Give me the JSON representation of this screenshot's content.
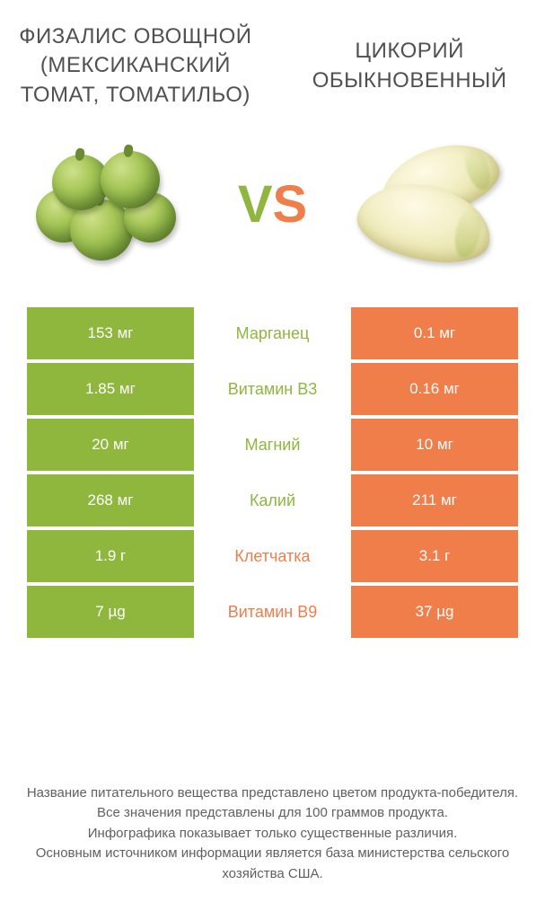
{
  "colors": {
    "left": "#8fb63d",
    "right": "#ef7e4a",
    "text_dark": "#505050",
    "text_footer": "#606060",
    "bg": "#ffffff"
  },
  "fonts": {
    "title_size": 24,
    "vs_size": 58,
    "cell_size": 17,
    "mid_size": 18,
    "footer_size": 15
  },
  "header": {
    "left_title": "ФИЗАЛИС ОВОЩНОЙ (МЕКСИКАНСКИЙ ТОМАТ, ТОМАТИЛЬО)",
    "right_title": "ЦИКОРИЙ ОБЫКНОВЕННЫЙ",
    "vs_v": "V",
    "vs_s": "S"
  },
  "rows": [
    {
      "left": "153 мг",
      "label": "Марганец",
      "right": "0.1 мг",
      "winner": "left"
    },
    {
      "left": "1.85 мг",
      "label": "Витамин B3",
      "right": "0.16 мг",
      "winner": "left"
    },
    {
      "left": "20 мг",
      "label": "Магний",
      "right": "10 мг",
      "winner": "left"
    },
    {
      "left": "268 мг",
      "label": "Калий",
      "right": "211 мг",
      "winner": "left"
    },
    {
      "left": "1.9 г",
      "label": "Клетчатка",
      "right": "3.1 г",
      "winner": "right"
    },
    {
      "left": "7 µg",
      "label": "Витамин B9",
      "right": "37 µg",
      "winner": "right"
    }
  ],
  "footer": {
    "line1": "Название питательного вещества представлено цветом продукта-победителя.",
    "line2": "Все значения представлены для 100 граммов продукта.",
    "line3": "Инфографика показывает только существенные различия.",
    "line4": "Основным источником информации является база министерства сельского хозяйства США."
  }
}
